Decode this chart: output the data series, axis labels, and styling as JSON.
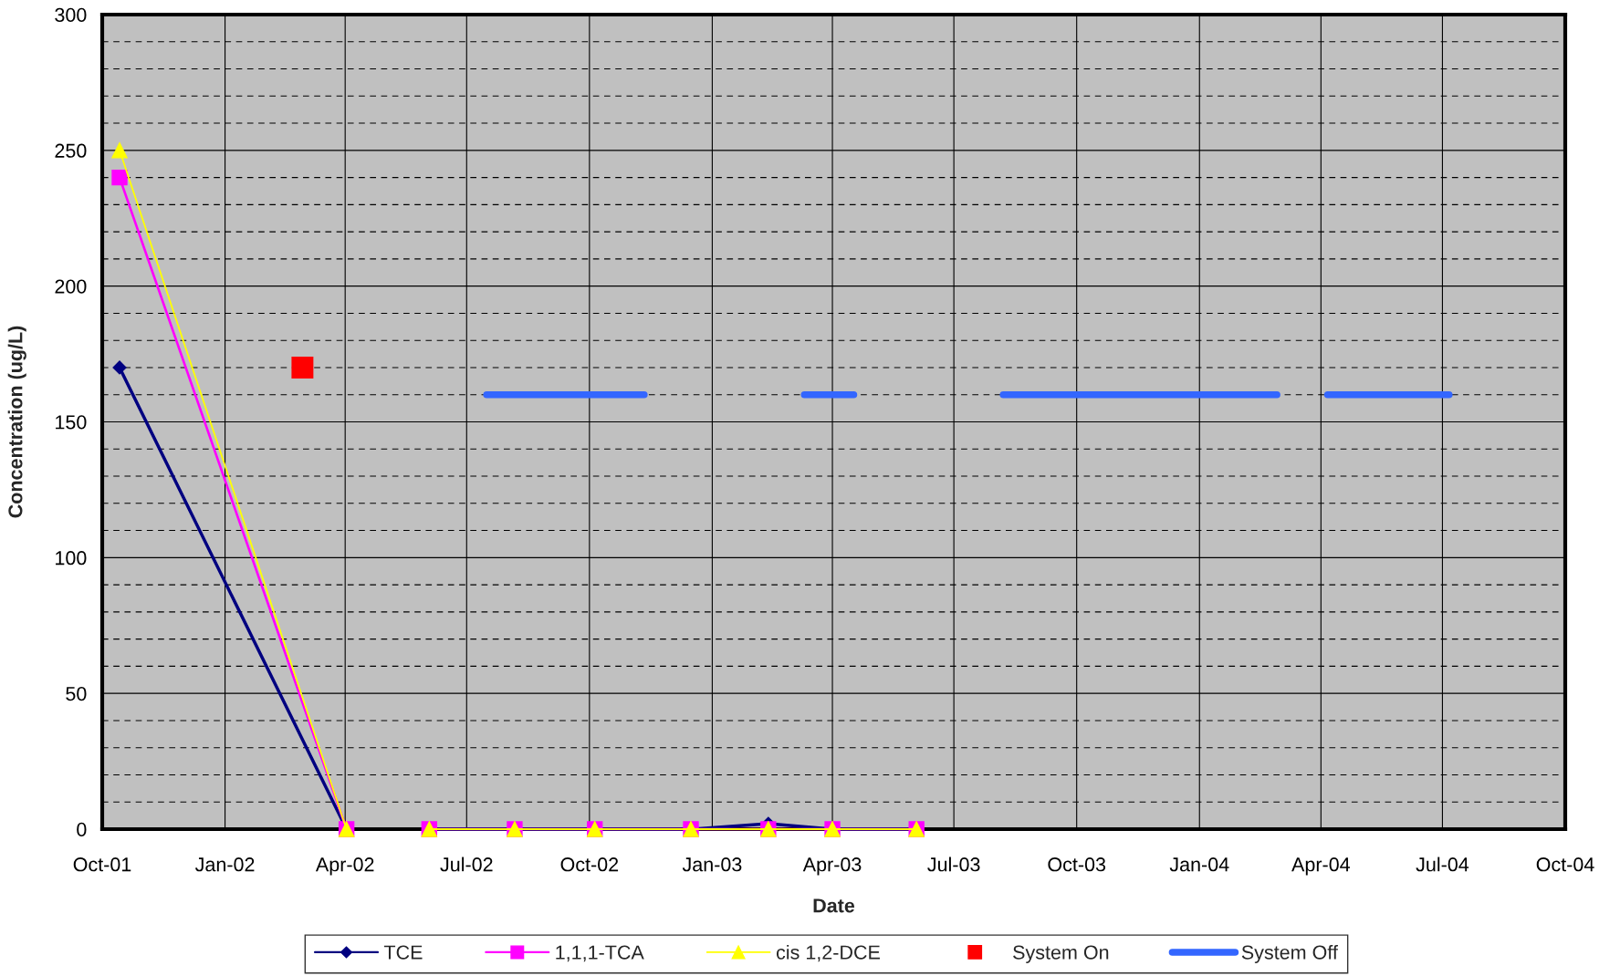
{
  "chart_data": {
    "type": "line",
    "xlabel": "Date",
    "ylabel": "Concentration (ug/L)",
    "x": [
      "2001-10-14",
      "2002-04-02",
      "2002-04-16",
      "2002-06-03",
      "2002-08-06",
      "2002-10-05",
      "2002-12-16",
      "2003-02-12",
      "2003-04-01",
      "2003-06-03"
    ],
    "xlim": [
      "2001-10-01",
      "2004-10-01"
    ],
    "xticks": [
      {
        "value": "2001-10-01",
        "label": "Oct-01"
      },
      {
        "value": "2002-01-01",
        "label": "Jan-02"
      },
      {
        "value": "2002-04-01",
        "label": "Apr-02"
      },
      {
        "value": "2002-07-01",
        "label": "Jul-02"
      },
      {
        "value": "2002-10-01",
        "label": "Oct-02"
      },
      {
        "value": "2003-01-01",
        "label": "Jan-03"
      },
      {
        "value": "2003-04-01",
        "label": "Apr-03"
      },
      {
        "value": "2003-07-01",
        "label": "Jul-03"
      },
      {
        "value": "2003-10-01",
        "label": "Oct-03"
      },
      {
        "value": "2004-01-01",
        "label": "Jan-04"
      },
      {
        "value": "2004-04-01",
        "label": "Apr-04"
      },
      {
        "value": "2004-07-01",
        "label": "Jul-04"
      },
      {
        "value": "2004-10-01",
        "label": "Oct-04"
      }
    ],
    "ylim": [
      0,
      300
    ],
    "yticks": [
      0,
      50,
      100,
      150,
      200,
      250,
      300
    ],
    "grid": true,
    "legend": "bottom",
    "series": [
      {
        "name": "TCE",
        "color": "#000080",
        "marker": "diamond",
        "values": [
          170,
          0,
          null,
          0,
          0,
          0,
          0,
          2,
          0,
          0
        ]
      },
      {
        "name": "1,1,1-TCA",
        "color": "#ff00ff",
        "marker": "square",
        "values": [
          240,
          0,
          null,
          0,
          0,
          0,
          0,
          0,
          0,
          0
        ]
      },
      {
        "name": "cis 1,2-DCE",
        "color": "#ffff00",
        "marker": "triangle",
        "values": [
          250,
          0,
          null,
          0,
          0,
          0,
          0,
          0,
          0,
          0
        ]
      },
      {
        "name": "System On",
        "type": "scatter",
        "color": "#ff0000",
        "marker": "square",
        "x": [
          "2002-02-28"
        ],
        "values": [
          170
        ]
      },
      {
        "name": "System Off",
        "type": "line",
        "color": "#3366ff",
        "marker": "none",
        "x": [
          "2002-07-16",
          "2002-11-11",
          "2002-12-01",
          "2003-03-11",
          "2003-04-17",
          "2003-06-01",
          "2003-08-07",
          "2004-02-28",
          "2004-03-15",
          "2004-04-06",
          "2004-07-06"
        ],
        "values": [
          160,
          160,
          null,
          160,
          160,
          null,
          160,
          160,
          null,
          160,
          160
        ]
      }
    ]
  }
}
